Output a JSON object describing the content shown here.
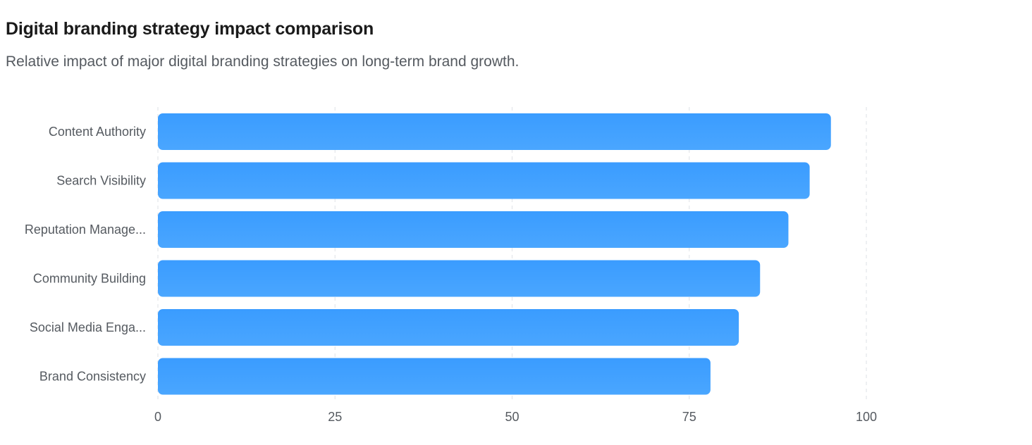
{
  "header": {
    "title": "Digital branding strategy impact comparison",
    "subtitle": "Relative impact of major digital branding strategies on long-term brand growth."
  },
  "chart_data": {
    "type": "bar",
    "orientation": "horizontal",
    "title": "Digital branding strategy impact comparison",
    "subtitle": "Relative impact of major digital branding strategies on long-term brand growth.",
    "categories": [
      "Content Authority",
      "Search Visibility",
      "Reputation Manage...",
      "Community Building",
      "Social Media Enga...",
      "Brand Consistency"
    ],
    "values": [
      95,
      92,
      89,
      85,
      82,
      78
    ],
    "xlim": [
      0,
      100
    ],
    "xticks": [
      "0",
      "25",
      "50",
      "75",
      "100"
    ],
    "xlabel": "",
    "ylabel": "",
    "grid": "vertical dashed",
    "legend": "none",
    "colors": {
      "bar_top": "#3a9cff",
      "bar_bottom": "#4aa6ff",
      "grid": "#e3e6ea",
      "label": "#555a60"
    }
  }
}
